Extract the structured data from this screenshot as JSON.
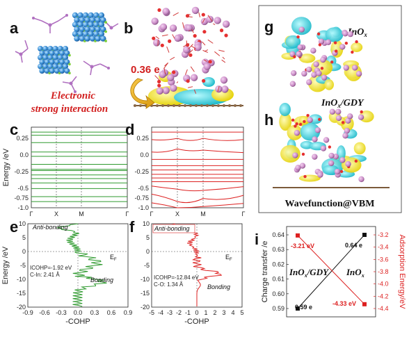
{
  "panels": {
    "a": {
      "label": "a",
      "caption_line1": "Electronic",
      "caption_line2": "strong interaction"
    },
    "b": {
      "label": "b",
      "charge": "0.36 e"
    },
    "c": {
      "label": "c",
      "ylabel": "Energy /eV",
      "yticks": [
        "0.25",
        "0.0",
        "-0.25",
        "-0.5",
        "-0.75",
        "-1.0"
      ],
      "kpoints": [
        "Γ",
        "X",
        "M",
        "Γ"
      ],
      "line_color": "#2e9a2e"
    },
    "d": {
      "label": "d",
      "yticks": [
        "0.25",
        "0.0",
        "-0.25",
        "-0.5",
        "-0.75",
        "-1.0"
      ],
      "kpoints": [
        "Γ",
        "X",
        "M",
        "Γ"
      ],
      "line_color": "#dd2020"
    },
    "e": {
      "label": "e",
      "ylabel": "Energy /eV",
      "xlabel": "-COHP",
      "xticks": [
        "-0.9",
        "-0.6",
        "-0.3",
        "0.0",
        "0.3",
        "0.6",
        "0.9"
      ],
      "yticks": [
        "10",
        "5",
        "0",
        "-5",
        "-10",
        "-15",
        "-20"
      ],
      "anti": "Anti-bonding",
      "bond": "Bonding",
      "ef": "E",
      "icohp": "ICOHP=-1.92 eV",
      "dist": "C-In: 2.41 Å",
      "line_color": "#2e9a2e"
    },
    "f": {
      "label": "f",
      "xlabel": "-COHP",
      "xticks": [
        "-5",
        "-4",
        "-3",
        "-2",
        "-1",
        "0",
        "1",
        "2",
        "3",
        "4",
        "5"
      ],
      "yticks": [
        "10",
        "5",
        "0",
        "-5",
        "-10",
        "-15",
        "-20"
      ],
      "anti": "Anti-bonding",
      "bond": "Bonding",
      "ef": "E",
      "icohp": "ICOHP=-12.84 eV",
      "dist": "C-O: 1.34 Å",
      "line_color": "#dd2020"
    },
    "g": {
      "label": "g",
      "title": "InO",
      "title_sub": "x"
    },
    "h": {
      "label": "h",
      "title_a": "InO",
      "title_sub": "x",
      "title_b": "/GDY",
      "footer": "Wavefunction@VBM"
    },
    "i": {
      "label": "i",
      "ylabel_left": "Charge transfer /e",
      "ylabel_right": "Adsorption Energy/eV",
      "yticks_left": [
        "0.64",
        "0.63",
        "0.62",
        "0.61",
        "0.60",
        "0.59"
      ],
      "yticks_right": [
        "-3.2",
        "-3.4",
        "-3.6",
        "-3.8",
        "-4.0",
        "-4.2",
        "-4.4"
      ],
      "name_left_a": "InO",
      "name_left_sub": "x",
      "name_left_b": "/GDY",
      "name_right_a": "InO",
      "name_right_sub": "x",
      "lbl_059": "0.59 e",
      "lbl_064": "0.64 e",
      "lbl_321": "-3.21 eV",
      "lbl_433": "-4.33 eV"
    }
  },
  "chart_data": [
    {
      "type": "line",
      "panel": "c",
      "ylabel": "Energy /eV",
      "ylim": [
        -1.0,
        0.3
      ],
      "xticks": [
        "Γ",
        "X",
        "M",
        "Γ"
      ],
      "bands": [
        0.22,
        0.17,
        0.05,
        -0.1,
        -0.17,
        -0.3,
        -0.38,
        -0.4,
        -0.47,
        -0.53,
        -0.6,
        -0.69,
        -0.82,
        -0.9
      ]
    },
    {
      "type": "line",
      "panel": "d",
      "ylim": [
        -1.0,
        0.3
      ],
      "xticks": [
        "Γ",
        "X",
        "M",
        "Γ"
      ],
      "flat_bands": [
        0.22,
        -0.22,
        -0.32,
        -0.39,
        -0.46,
        -0.52,
        -0.58
      ]
    },
    {
      "type": "line",
      "panel": "e",
      "xlabel": "-COHP",
      "ylabel": "Energy /eV",
      "xlim": [
        -0.9,
        0.9
      ],
      "ylim": [
        -20,
        10
      ]
    },
    {
      "type": "line",
      "panel": "f",
      "xlabel": "-COHP",
      "xlim": [
        -5,
        5
      ],
      "ylim": [
        -20,
        10
      ]
    },
    {
      "type": "line",
      "panel": "i",
      "categories": [
        "InOx/GDY",
        "InOx"
      ],
      "series": [
        {
          "values": [
            0.59,
            0.64
          ],
          "axis": "left",
          "color": "#111111"
        },
        {
          "values": [
            -3.21,
            -4.33
          ],
          "axis": "right",
          "color": "#dd2020"
        }
      ],
      "ylim_left": [
        0.59,
        0.64
      ],
      "ylim_right": [
        -4.4,
        -3.2
      ]
    }
  ]
}
